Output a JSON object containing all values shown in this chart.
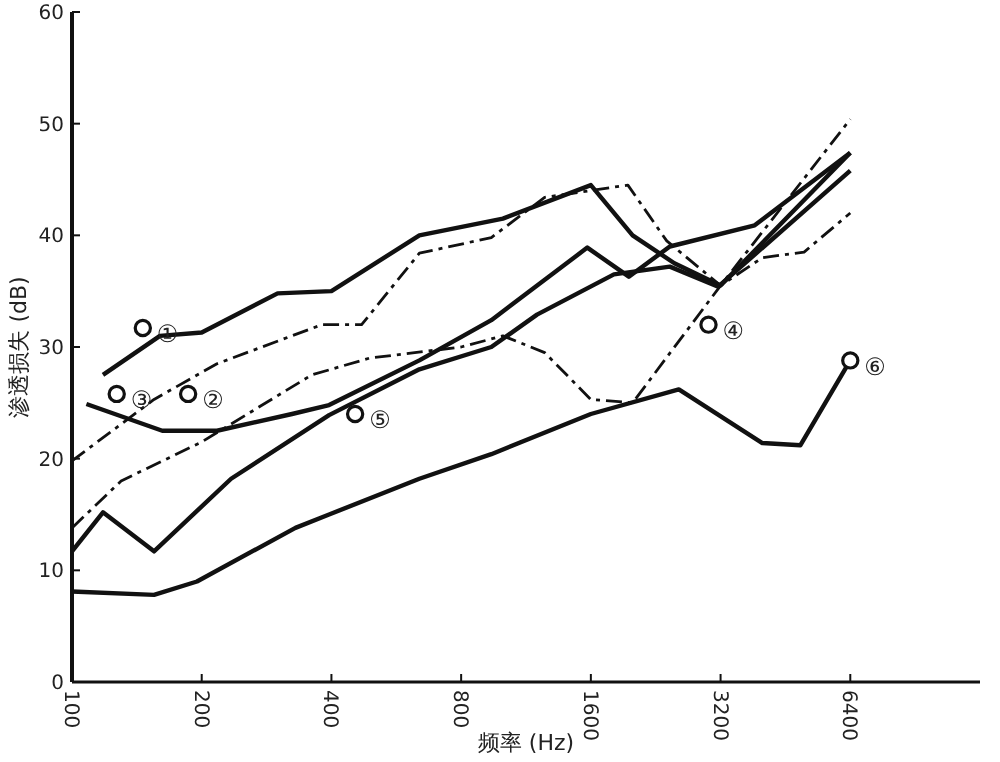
{
  "chart_data": {
    "type": "line",
    "xlabel": "频率 (Hz)",
    "ylabel": "渗透损失 (dB)",
    "log": "x",
    "xlim": [
      100,
      12800
    ],
    "xticks": [
      100,
      200,
      400,
      800,
      1600,
      3200,
      6400
    ],
    "ylim": [
      0,
      60
    ],
    "yticks": [
      0,
      10,
      20,
      30,
      40,
      50,
      60
    ],
    "grid": false,
    "marker": "none",
    "series": [
      {
        "color": "#111111",
        "line_style": "solid",
        "x": [
          118,
          160,
          200,
          300,
          400,
          640,
          1000,
          1600,
          2000,
          2500,
          3200,
          6400
        ],
        "values": [
          27.5,
          31,
          31.3,
          34.8,
          35,
          40,
          41.5,
          44.5,
          40,
          37.5,
          35.5,
          47.4
        ]
      },
      {
        "color": "#111111",
        "line_style": "dashed",
        "x": [
          100,
          155,
          217,
          380,
          470,
          640,
          940,
          1250,
          1950,
          2400,
          3200,
          4000,
          5000,
          6400
        ],
        "values": [
          19.8,
          25.3,
          28.5,
          32,
          32,
          38.4,
          39.8,
          43.4,
          44.5,
          39.5,
          35.5,
          38,
          38.5,
          42
        ]
      },
      {
        "color": "#111111",
        "line_style": "dashed",
        "x": [
          100,
          130,
          200,
          360,
          490,
          800,
          1000,
          1250,
          1600,
          2000,
          3200,
          6400
        ],
        "values": [
          13.8,
          18,
          21.5,
          27.5,
          29,
          30,
          31,
          29.5,
          25.3,
          25,
          35.5,
          50.4
        ]
      },
      {
        "color": "#111111",
        "line_style": "solid",
        "x": [
          108,
          162,
          217,
          324,
          395,
          640,
          940,
          1570,
          1960,
          2440,
          3840,
          6400
        ],
        "values": [
          24.9,
          22.5,
          22.5,
          24,
          24.8,
          28.8,
          32.4,
          38.9,
          36.3,
          39,
          40.9,
          47.4
        ]
      },
      {
        "color": "#111111",
        "line_style": "solid",
        "x": [
          100,
          118,
          155,
          234,
          395,
          640,
          940,
          1200,
          1810,
          2440,
          3160,
          6400
        ],
        "values": [
          11.7,
          15.2,
          11.7,
          18.2,
          23.9,
          28,
          30,
          32.9,
          36.5,
          37.2,
          35.4,
          45.8
        ]
      },
      {
        "color": "#111111",
        "line_style": "solid",
        "x": [
          100,
          155,
          195,
          330,
          395,
          640,
          940,
          1600,
          2560,
          4000,
          4900,
          6400
        ],
        "values": [
          8.1,
          7.8,
          9,
          13.8,
          15,
          18.2,
          20.4,
          24,
          26.2,
          21.4,
          21.2,
          28.8
        ]
      },
      {
        "type": "scatter",
        "marker": "circle",
        "color": "#111111",
        "x": [
          146,
          127,
          186,
          454,
          3000,
          6400
        ],
        "values": [
          31.7,
          25.8,
          25.8,
          24,
          32,
          28.8
        ]
      }
    ],
    "annotations": [
      {
        "text": "①",
        "x": 146,
        "y": 31.7
      },
      {
        "text": "②",
        "x": 186,
        "y": 25.8
      },
      {
        "text": "③",
        "x": 127,
        "y": 25.8
      },
      {
        "text": "④",
        "x": 3000,
        "y": 32
      },
      {
        "text": "⑤",
        "x": 454,
        "y": 24
      },
      {
        "text": "⑥",
        "x": 6400,
        "y": 28.8
      }
    ]
  }
}
